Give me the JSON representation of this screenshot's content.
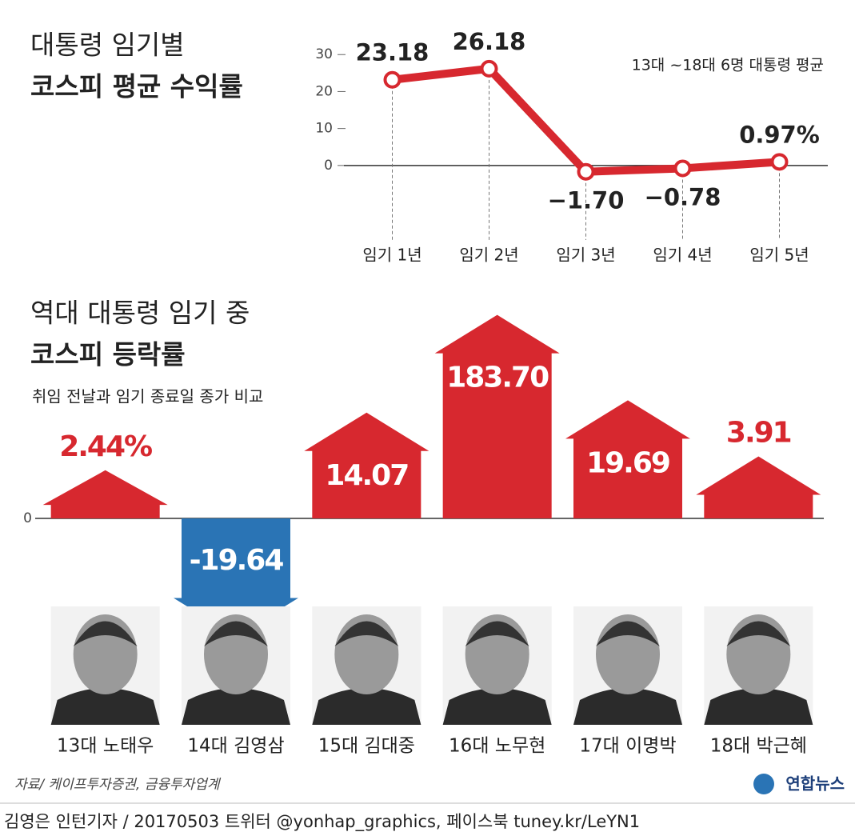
{
  "chart_data": [
    {
      "type": "line",
      "title": "대통령 임기별",
      "subtitle": "코스피 평균 수익률",
      "annotation": "13대 ~18대 6명 대통령 평균",
      "categories": [
        "임기 1년",
        "임기 2년",
        "임기 3년",
        "임기 4년",
        "임기 5년"
      ],
      "values": [
        23.18,
        26.18,
        -1.7,
        -0.78,
        0.97
      ],
      "value_labels": [
        "23.18",
        "26.18",
        "−1.70",
        "−0.78",
        "0.97%"
      ],
      "color": "#d7282f",
      "ylim": [
        -18,
        32
      ],
      "yticks": [
        0,
        10,
        20,
        30
      ]
    },
    {
      "type": "arrow-bar",
      "title": "역대 대통령 임기 중",
      "subtitle": "코스피 등락률",
      "note": "취임 전날과 임기 종료일 종가 비교",
      "categories": [
        "13대 노태우",
        "14대 김영삼",
        "15대 김대중",
        "16대 노무현",
        "17대 이명박",
        "18대 박근혜"
      ],
      "values": [
        2.44,
        -19.64,
        14.07,
        183.7,
        19.69,
        3.91
      ],
      "value_labels": [
        "2.44%",
        "-19.64",
        "14.07",
        "183.70",
        "19.69",
        "3.91"
      ],
      "colors": {
        "positive": "#d7282f",
        "negative": "#2a74b5"
      },
      "scale": "symlog",
      "ylim": [
        -30,
        190
      ],
      "yticks": [
        0
      ]
    }
  ],
  "source": "자료/ 케이프투자증권, 금융투자업계",
  "logo": "연합뉴스",
  "credit": "김영은 인턴기자 / 20170503 트위터 @yonhap_graphics, 페이스북 tuney.kr/LeYN1"
}
